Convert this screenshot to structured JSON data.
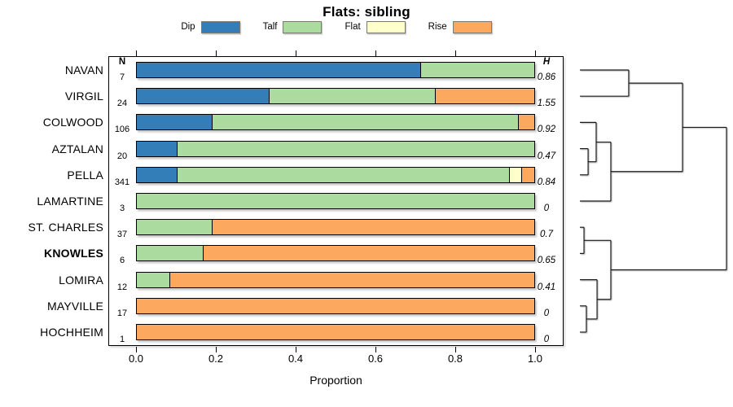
{
  "chart_data": {
    "type": "bar",
    "variant": "horizontal-stacked-proportion-with-dendrogram",
    "title": "Flats: sibling",
    "xlabel": "Proportion",
    "xlim": [
      0,
      1
    ],
    "xticks": [
      "0.0",
      "0.2",
      "0.4",
      "0.6",
      "0.8",
      "1.0"
    ],
    "grid": false,
    "legend_position": "top-center",
    "legend": [
      {
        "label": "Dip",
        "color": "#337EB8"
      },
      {
        "label": "Talf",
        "color": "#ACDBA0"
      },
      {
        "label": "Flat",
        "color": "#FFFFCC"
      },
      {
        "label": "Rise",
        "color": "#FCA85E"
      }
    ],
    "columns": {
      "n_header": "N",
      "h_header": "H"
    },
    "rows": [
      {
        "label": "NAVAN",
        "n": "7",
        "h": "0.86",
        "bold": false,
        "values": [
          0.714,
          0.286,
          0,
          0
        ]
      },
      {
        "label": "VIRGIL",
        "n": "24",
        "h": "1.55",
        "bold": false,
        "values": [
          0.333,
          0.417,
          0,
          0.25
        ]
      },
      {
        "label": "COLWOOD",
        "n": "106",
        "h": "0.92",
        "bold": false,
        "values": [
          0.189,
          0.772,
          0,
          0.039
        ]
      },
      {
        "label": "AZTALAN",
        "n": "20",
        "h": "0.47",
        "bold": false,
        "values": [
          0.1,
          0.9,
          0,
          0
        ]
      },
      {
        "label": "PELLA",
        "n": "341",
        "h": "0.84",
        "bold": false,
        "values": [
          0.1,
          0.841,
          0.028,
          0.031
        ]
      },
      {
        "label": "LAMARTINE",
        "n": "3",
        "h": "0",
        "bold": false,
        "values": [
          0,
          1,
          0,
          0
        ]
      },
      {
        "label": "ST. CHARLES",
        "n": "37",
        "h": "0.7",
        "bold": false,
        "values": [
          0,
          0.189,
          0,
          0.811
        ]
      },
      {
        "label": "KNOWLES",
        "n": "6",
        "h": "0.65",
        "bold": true,
        "values": [
          0,
          0.167,
          0,
          0.833
        ]
      },
      {
        "label": "LOMIRA",
        "n": "12",
        "h": "0.41",
        "bold": false,
        "values": [
          0,
          0.083,
          0,
          0.917
        ]
      },
      {
        "label": "MAYVILLE",
        "n": "17",
        "h": "0",
        "bold": false,
        "values": [
          0,
          0,
          0,
          1
        ]
      },
      {
        "label": "HOCHHEIM",
        "n": "1",
        "h": "0",
        "bold": false,
        "values": [
          0,
          0,
          0,
          1
        ]
      }
    ],
    "dendrogram": {
      "h": 1.0,
      "c": [
        {
          "h": 0.7,
          "c": [
            {
              "h": 0.333,
              "c": [
                {
                  "leaf": "NAVAN"
                },
                {
                  "leaf": "VIRGIL"
                }
              ]
            },
            {
              "h": 0.211,
              "c": [
                {
                  "h": 0.111,
                  "c": [
                    {
                      "leaf": "COLWOOD"
                    },
                    {
                      "h": 0.056,
                      "c": [
                        {
                          "leaf": "AZTALAN"
                        },
                        {
                          "leaf": "PELLA"
                        }
                      ]
                    }
                  ]
                },
                {
                  "leaf": "LAMARTINE"
                }
              ]
            }
          ]
        },
        {
          "h": 0.211,
          "c": [
            {
              "h": 0.028,
              "c": [
                {
                  "leaf": "ST. CHARLES"
                },
                {
                  "leaf": "KNOWLES"
                }
              ]
            },
            {
              "h": 0.117,
              "c": [
                {
                  "leaf": "LOMIRA"
                },
                {
                  "h": 0.044,
                  "c": [
                    {
                      "leaf": "MAYVILLE"
                    },
                    {
                      "leaf": "HOCHHEIM"
                    }
                  ]
                }
              ]
            }
          ]
        }
      ]
    }
  }
}
